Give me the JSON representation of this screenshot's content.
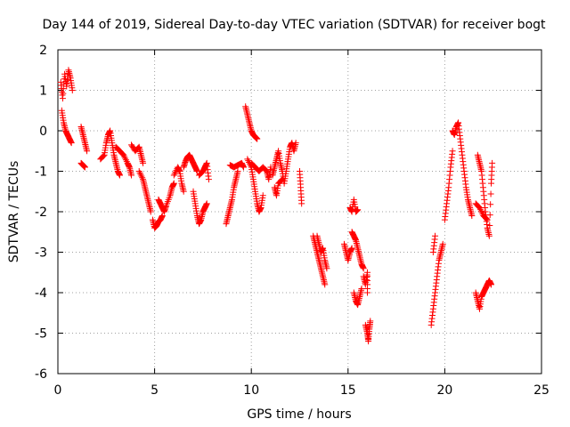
{
  "chart_data": {
    "type": "scatter",
    "title": "Day 144 of 2019, Sidereal Day-to-day VTEC variation (SDTVAR) for receiver bogt",
    "xlabel": "GPS time / hours",
    "ylabel": "SDTVAR / TECUs",
    "xlim": [
      0,
      25
    ],
    "ylim": [
      -6,
      2
    ],
    "xticks": [
      0,
      5,
      10,
      15,
      20,
      25
    ],
    "yticks": [
      -6,
      -5,
      -4,
      -3,
      -2,
      -1,
      0,
      1,
      2
    ],
    "xtick_labels": [
      "0",
      "5",
      "10",
      "15",
      "20",
      "25"
    ],
    "ytick_labels": [
      "-6",
      "-5",
      "-4",
      "-3",
      "-2",
      "-1",
      "0",
      "1",
      "2"
    ],
    "grid": true,
    "marker": "+",
    "color": "#ff0000",
    "segments": [
      [
        [
          0.15,
          1.2
        ],
        [
          0.25,
          0.8
        ],
        [
          0.35,
          1.4
        ],
        [
          0.45,
          1.1
        ],
        [
          0.55,
          1.5
        ],
        [
          0.65,
          1.3
        ],
        [
          0.75,
          1.0
        ]
      ],
      [
        [
          0.2,
          0.5
        ],
        [
          0.3,
          0.2
        ],
        [
          0.4,
          0.0
        ],
        [
          0.5,
          -0.1
        ],
        [
          0.6,
          -0.2
        ],
        [
          0.7,
          -0.3
        ]
      ],
      [
        [
          1.2,
          0.1
        ],
        [
          1.3,
          -0.1
        ],
        [
          1.4,
          -0.3
        ],
        [
          1.5,
          -0.5
        ]
      ],
      [
        [
          1.2,
          -0.8
        ],
        [
          1.3,
          -0.85
        ],
        [
          1.4,
          -0.9
        ]
      ],
      [
        [
          2.2,
          -0.7
        ],
        [
          2.4,
          -0.6
        ],
        [
          2.5,
          -0.3
        ],
        [
          2.6,
          -0.1
        ],
        [
          2.7,
          0.0
        ],
        [
          2.8,
          -0.3
        ],
        [
          2.9,
          -0.6
        ],
        [
          3.0,
          -0.8
        ],
        [
          3.1,
          -1.0
        ],
        [
          3.2,
          -1.1
        ]
      ],
      [
        [
          3.0,
          -0.4
        ],
        [
          3.2,
          -0.5
        ],
        [
          3.4,
          -0.6
        ],
        [
          3.6,
          -0.8
        ],
        [
          3.7,
          -0.9
        ],
        [
          3.8,
          -1.1
        ]
      ],
      [
        [
          3.8,
          -0.35
        ],
        [
          4.0,
          -0.5
        ],
        [
          4.2,
          -0.4
        ],
        [
          4.3,
          -0.6
        ],
        [
          4.4,
          -0.8
        ]
      ],
      [
        [
          4.2,
          -1.0
        ],
        [
          4.4,
          -1.2
        ],
        [
          4.5,
          -1.4
        ],
        [
          4.6,
          -1.6
        ],
        [
          4.7,
          -1.8
        ],
        [
          4.8,
          -2.0
        ]
      ],
      [
        [
          4.9,
          -2.2
        ],
        [
          5.0,
          -2.4
        ],
        [
          5.1,
          -2.35
        ],
        [
          5.2,
          -2.25
        ],
        [
          5.3,
          -2.2
        ],
        [
          5.4,
          -2.1
        ]
      ],
      [
        [
          5.2,
          -1.7
        ],
        [
          5.3,
          -1.8
        ],
        [
          5.4,
          -1.9
        ],
        [
          5.5,
          -2.0
        ],
        [
          5.6,
          -1.85
        ],
        [
          5.8,
          -1.6
        ],
        [
          5.9,
          -1.4
        ],
        [
          6.0,
          -1.3
        ]
      ],
      [
        [
          6.0,
          -1.1
        ],
        [
          6.2,
          -0.9
        ],
        [
          6.3,
          -1.0
        ],
        [
          6.4,
          -1.3
        ],
        [
          6.5,
          -1.5
        ]
      ],
      [
        [
          6.5,
          -0.9
        ],
        [
          6.6,
          -0.75
        ],
        [
          6.7,
          -0.65
        ],
        [
          6.8,
          -0.6
        ],
        [
          6.9,
          -0.7
        ],
        [
          7.0,
          -0.8
        ],
        [
          7.1,
          -0.9
        ],
        [
          7.2,
          -1.0
        ]
      ],
      [
        [
          7.0,
          -1.5
        ],
        [
          7.1,
          -1.8
        ],
        [
          7.2,
          -2.1
        ],
        [
          7.3,
          -2.3
        ],
        [
          7.4,
          -2.2
        ],
        [
          7.5,
          -2.0
        ],
        [
          7.6,
          -1.9
        ],
        [
          7.7,
          -1.8
        ]
      ],
      [
        [
          7.3,
          -1.1
        ],
        [
          7.5,
          -1.0
        ],
        [
          7.6,
          -0.9
        ],
        [
          7.7,
          -0.8
        ],
        [
          7.8,
          -1.2
        ]
      ],
      [
        [
          8.7,
          -2.3
        ],
        [
          8.8,
          -2.1
        ],
        [
          8.9,
          -1.9
        ],
        [
          9.0,
          -1.7
        ],
        [
          9.1,
          -1.4
        ],
        [
          9.2,
          -1.2
        ],
        [
          9.3,
          -1.0
        ]
      ],
      [
        [
          8.9,
          -0.85
        ],
        [
          9.1,
          -0.9
        ],
        [
          9.3,
          -0.85
        ],
        [
          9.5,
          -0.8
        ],
        [
          9.6,
          -0.9
        ]
      ],
      [
        [
          9.7,
          0.6
        ],
        [
          9.8,
          0.4
        ],
        [
          9.9,
          0.2
        ],
        [
          10.0,
          0.0
        ],
        [
          10.1,
          -0.1
        ],
        [
          10.2,
          -0.15
        ],
        [
          10.3,
          -0.2
        ]
      ],
      [
        [
          9.8,
          -0.7
        ],
        [
          10.0,
          -0.9
        ],
        [
          10.1,
          -1.2
        ],
        [
          10.2,
          -1.5
        ],
        [
          10.3,
          -1.8
        ],
        [
          10.4,
          -2.0
        ],
        [
          10.5,
          -1.9
        ],
        [
          10.6,
          -1.6
        ]
      ],
      [
        [
          10.0,
          -0.8
        ],
        [
          10.2,
          -0.9
        ],
        [
          10.4,
          -1.0
        ],
        [
          10.6,
          -0.9
        ],
        [
          10.8,
          -1.0
        ],
        [
          10.9,
          -1.2
        ],
        [
          11.0,
          -0.9
        ]
      ],
      [
        [
          11.1,
          -1.1
        ],
        [
          11.2,
          -0.9
        ],
        [
          11.3,
          -0.7
        ],
        [
          11.4,
          -0.5
        ],
        [
          11.5,
          -0.8
        ],
        [
          11.6,
          -1.0
        ],
        [
          11.7,
          -1.3
        ],
        [
          11.8,
          -1.0
        ],
        [
          11.9,
          -0.7
        ],
        [
          12.0,
          -0.4
        ],
        [
          12.1,
          -0.3
        ],
        [
          12.2,
          -0.5
        ],
        [
          12.3,
          -0.3
        ]
      ],
      [
        [
          11.2,
          -1.4
        ],
        [
          11.3,
          -1.6
        ],
        [
          11.4,
          -1.3
        ],
        [
          11.6,
          -1.2
        ]
      ],
      [
        [
          12.5,
          -1.0
        ],
        [
          12.55,
          -1.4
        ],
        [
          12.6,
          -1.8
        ]
      ],
      [
        [
          13.2,
          -2.6
        ],
        [
          13.3,
          -2.8
        ],
        [
          13.4,
          -3.0
        ],
        [
          13.5,
          -3.2
        ],
        [
          13.6,
          -3.4
        ],
        [
          13.7,
          -3.6
        ],
        [
          13.8,
          -3.8
        ]
      ],
      [
        [
          13.4,
          -2.6
        ],
        [
          13.5,
          -2.8
        ],
        [
          13.6,
          -3.0
        ],
        [
          13.7,
          -2.9
        ],
        [
          13.8,
          -3.2
        ],
        [
          13.9,
          -3.4
        ]
      ],
      [
        [
          14.8,
          -2.8
        ],
        [
          14.9,
          -3.0
        ],
        [
          15.0,
          -3.2
        ],
        [
          15.1,
          -3.0
        ],
        [
          15.2,
          -2.9
        ]
      ],
      [
        [
          15.1,
          -1.9
        ],
        [
          15.2,
          -2.0
        ],
        [
          15.3,
          -1.7
        ],
        [
          15.4,
          -2.0
        ],
        [
          15.5,
          -1.95
        ]
      ],
      [
        [
          15.2,
          -2.5
        ],
        [
          15.3,
          -2.6
        ],
        [
          15.4,
          -2.7
        ],
        [
          15.5,
          -2.9
        ],
        [
          15.6,
          -3.1
        ],
        [
          15.7,
          -3.3
        ],
        [
          15.8,
          -3.4
        ]
      ],
      [
        [
          15.3,
          -4.0
        ],
        [
          15.4,
          -4.2
        ],
        [
          15.5,
          -4.3
        ],
        [
          15.6,
          -4.1
        ],
        [
          15.7,
          -3.9
        ]
      ],
      [
        [
          15.8,
          -3.6
        ],
        [
          15.9,
          -3.8
        ],
        [
          16.0,
          -3.5
        ],
        [
          16.0,
          -4.0
        ]
      ],
      [
        [
          15.9,
          -4.8
        ],
        [
          16.0,
          -5.0
        ],
        [
          16.05,
          -5.2
        ],
        [
          16.1,
          -4.9
        ],
        [
          16.15,
          -4.7
        ]
      ],
      [
        [
          19.3,
          -4.8
        ],
        [
          19.4,
          -4.4
        ],
        [
          19.5,
          -4.0
        ],
        [
          19.6,
          -3.6
        ],
        [
          19.7,
          -3.2
        ],
        [
          19.8,
          -3.0
        ],
        [
          19.9,
          -2.8
        ]
      ],
      [
        [
          19.4,
          -3.0
        ],
        [
          19.5,
          -2.6
        ]
      ],
      [
        [
          20.0,
          -2.2
        ],
        [
          20.1,
          -1.8
        ],
        [
          20.2,
          -1.4
        ],
        [
          20.3,
          -0.9
        ],
        [
          20.4,
          -0.5
        ]
      ],
      [
        [
          20.4,
          0.0
        ],
        [
          20.5,
          -0.1
        ],
        [
          20.6,
          0.1
        ],
        [
          20.7,
          0.2
        ],
        [
          20.8,
          -0.2
        ],
        [
          20.9,
          -0.6
        ],
        [
          21.0,
          -1.0
        ],
        [
          21.1,
          -1.4
        ],
        [
          21.2,
          -1.7
        ],
        [
          21.3,
          -1.9
        ],
        [
          21.4,
          -2.1
        ]
      ],
      [
        [
          21.6,
          -4.0
        ],
        [
          21.7,
          -4.2
        ],
        [
          21.8,
          -4.4
        ],
        [
          21.9,
          -4.1
        ],
        [
          22.0,
          -4.0
        ],
        [
          22.1,
          -3.9
        ],
        [
          22.2,
          -3.8
        ],
        [
          22.3,
          -3.7
        ],
        [
          22.4,
          -3.8
        ]
      ],
      [
        [
          21.7,
          -0.6
        ],
        [
          21.8,
          -0.8
        ],
        [
          21.9,
          -1.0
        ],
        [
          22.0,
          -1.5
        ],
        [
          22.1,
          -2.0
        ],
        [
          22.2,
          -2.4
        ],
        [
          22.3,
          -2.6
        ],
        [
          22.4,
          -1.3
        ],
        [
          22.45,
          -0.8
        ]
      ],
      [
        [
          21.6,
          -1.8
        ],
        [
          21.8,
          -1.9
        ],
        [
          22.0,
          -2.1
        ],
        [
          22.2,
          -2.2
        ]
      ]
    ]
  }
}
